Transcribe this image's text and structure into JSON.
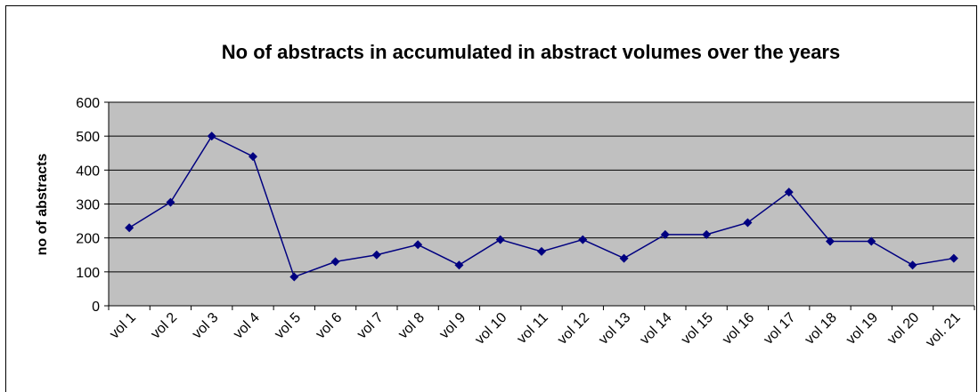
{
  "chart_data": {
    "type": "line",
    "title": "No of abstracts in accumulated in abstract volumes over the years",
    "y_label": "no of abstracts",
    "categories": [
      "vol 1",
      "vol 2",
      "vol 3",
      "vol 4",
      "vol 5",
      "vol 6",
      "vol 7",
      "vol 8",
      "vol 9",
      "vol 10",
      "vol 11",
      "vol 12",
      "vol 13",
      "vol 14",
      "vol 15",
      "vol 16",
      "vol 17",
      "vol 18",
      "vol 19",
      "vol 20",
      "vol. 21"
    ],
    "series": [
      {
        "name": "no of abstracts",
        "color": "#000080",
        "values": [
          230,
          305,
          500,
          440,
          85,
          130,
          150,
          180,
          120,
          195,
          160,
          195,
          140,
          210,
          210,
          245,
          335,
          190,
          190,
          120,
          140
        ]
      }
    ],
    "ylim": [
      0,
      600
    ],
    "yticks": [
      0,
      100,
      200,
      300,
      400,
      500,
      600
    ],
    "grid": true,
    "plot_background": "#c0c0c0"
  }
}
